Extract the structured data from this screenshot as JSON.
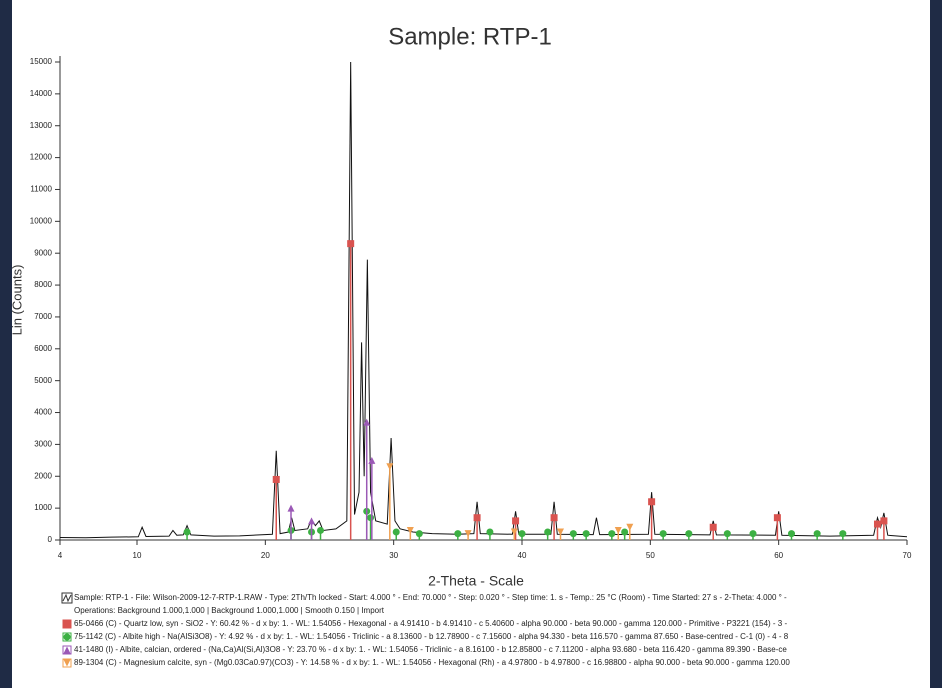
{
  "chart_data": {
    "type": "line",
    "title": "Sample: RTP-1",
    "x_label": "2-Theta - Scale",
    "y_label": "Lin (Counts)",
    "xlim": [
      4,
      70
    ],
    "xticks": [
      4,
      10,
      20,
      30,
      40,
      50,
      60,
      70
    ],
    "ylim": [
      0,
      15000
    ],
    "yticks": [
      0,
      1000,
      2000,
      3000,
      4000,
      5000,
      6000,
      7000,
      8000,
      9000,
      10000,
      11000,
      12000,
      13000,
      14000,
      15000
    ],
    "legend_note": "Operations: Background 1.000,1.000 | Background 1.000,1.000 | Smooth 0.150 | Import",
    "series": [
      {
        "name": "Sample: RTP-1 - File: Wilson-2009-12-7-RTP-1.RAW - Type: 2Th/Th locked - Start: 4.000 ° - End: 70.000 ° - Step: 0.020 ° - Step time: 1. s - Temp.: 25 °C (Room) - Time Started: 27 s - 2-Theta: 4.000 ° -",
        "color": "#111111",
        "style": "line",
        "x": [
          4,
          6,
          8,
          10.1,
          10.4,
          10.7,
          12.5,
          12.8,
          13.1,
          13.6,
          13.9,
          14.2,
          16,
          18,
          20.55,
          20.85,
          21.15,
          21.8,
          22.05,
          22.3,
          23.3,
          23.6,
          23.9,
          24.2,
          24.5,
          25.5,
          26.35,
          26.65,
          26.95,
          27.3,
          27.5,
          27.7,
          27.95,
          28.2,
          28.6,
          29.5,
          29.8,
          30.1,
          30.5,
          31.5,
          33,
          35,
          36.25,
          36.5,
          36.75,
          39.25,
          39.5,
          39.75,
          42.25,
          42.5,
          42.75,
          45.55,
          45.8,
          46.05,
          49.85,
          50.1,
          50.35,
          54.65,
          54.9,
          55.15,
          59.75,
          60,
          60.25,
          64,
          67.4,
          67.7,
          67.95,
          68.2,
          68.5,
          70
        ],
        "values": [
          80,
          70,
          90,
          100,
          400,
          110,
          120,
          300,
          150,
          160,
          450,
          160,
          120,
          130,
          180,
          2800,
          200,
          250,
          700,
          300,
          350,
          650,
          450,
          600,
          300,
          350,
          600,
          15000,
          800,
          1500,
          6200,
          2000,
          8800,
          1500,
          600,
          500,
          3200,
          600,
          350,
          250,
          200,
          180,
          200,
          1200,
          200,
          180,
          900,
          180,
          180,
          1200,
          180,
          170,
          700,
          170,
          180,
          1500,
          180,
          160,
          600,
          160,
          150,
          900,
          150,
          120,
          150,
          700,
          400,
          850,
          150,
          100
        ]
      },
      {
        "name": "65-0466 (C) - Quartz low, syn - SiO2 - Y: 60.42 % - d x by: 1. - WL: 1.54056 - Hexagonal - a 4.91410 - b 4.91410 - c 5.40600 - alpha 90.000 - beta 90.000 - gamma 120.000 - Primitive - P3221 (154) - 3 -",
        "color": "#d9534f",
        "style": "square",
        "x": [
          20.85,
          26.65,
          36.5,
          39.5,
          42.5,
          50.1,
          54.9,
          59.9,
          67.7,
          68.2
        ],
        "values": [
          1900,
          9300,
          700,
          600,
          700,
          1200,
          400,
          700,
          500,
          600
        ]
      },
      {
        "name": "75-1142 (C) - Albite high - Na(AlSi3O8) - Y: 4.92 % - d x by: 1. - WL: 1.54056 - Triclinic - a 8.13600 - b 12.78900 - c 7.15600 - alpha 94.330 - beta 116.570 - gamma 87.650 - Base-centred - C-1 (0) - 4 - 8",
        "color": "#3cb043",
        "style": "circle",
        "x": [
          13.9,
          22,
          23.6,
          24.3,
          27.9,
          28.2,
          30.2,
          32,
          35,
          37.5,
          40,
          42,
          44,
          45,
          47,
          48,
          51,
          53,
          56,
          58,
          61,
          63,
          65
        ],
        "values": [
          250,
          300,
          250,
          300,
          900,
          700,
          250,
          200,
          200,
          250,
          200,
          250,
          200,
          200,
          200,
          250,
          200,
          200,
          200,
          200,
          200,
          200,
          200
        ]
      },
      {
        "name": "41-1480 (I) - Albite, calcian, ordered - (Na,Ca)Al(Si,Al)3O8 - Y: 23.70 % - d x by: 1. - WL: 1.54056 - Triclinic - a 8.16100 - b 12.85800 - c 7.11200 - alpha 93.680 - beta 116.420 - gamma 89.390 - Base-ce",
        "color": "#9b59b6",
        "style": "triangle-up",
        "x": [
          22,
          23.6,
          27.9,
          28.3
        ],
        "values": [
          1000,
          600,
          3700,
          2500
        ]
      },
      {
        "name": "89-1304 (C) - Magnesium calcite, syn - (Mg0.03Ca0.97)(CO3) - Y: 14.58 % - d x by: 1. - WL: 1.54056 - Hexagonal (Rh) - a 4.97800 - b 4.97800 - c 16.98800 - alpha 90.000 - beta 90.000 - gamma 120.00",
        "color": "#f0a050",
        "style": "triangle-down",
        "x": [
          29.7,
          31.3,
          35.8,
          39.4,
          43,
          47.5,
          48.4
        ],
        "values": [
          2300,
          300,
          200,
          250,
          250,
          300,
          400
        ]
      }
    ]
  }
}
